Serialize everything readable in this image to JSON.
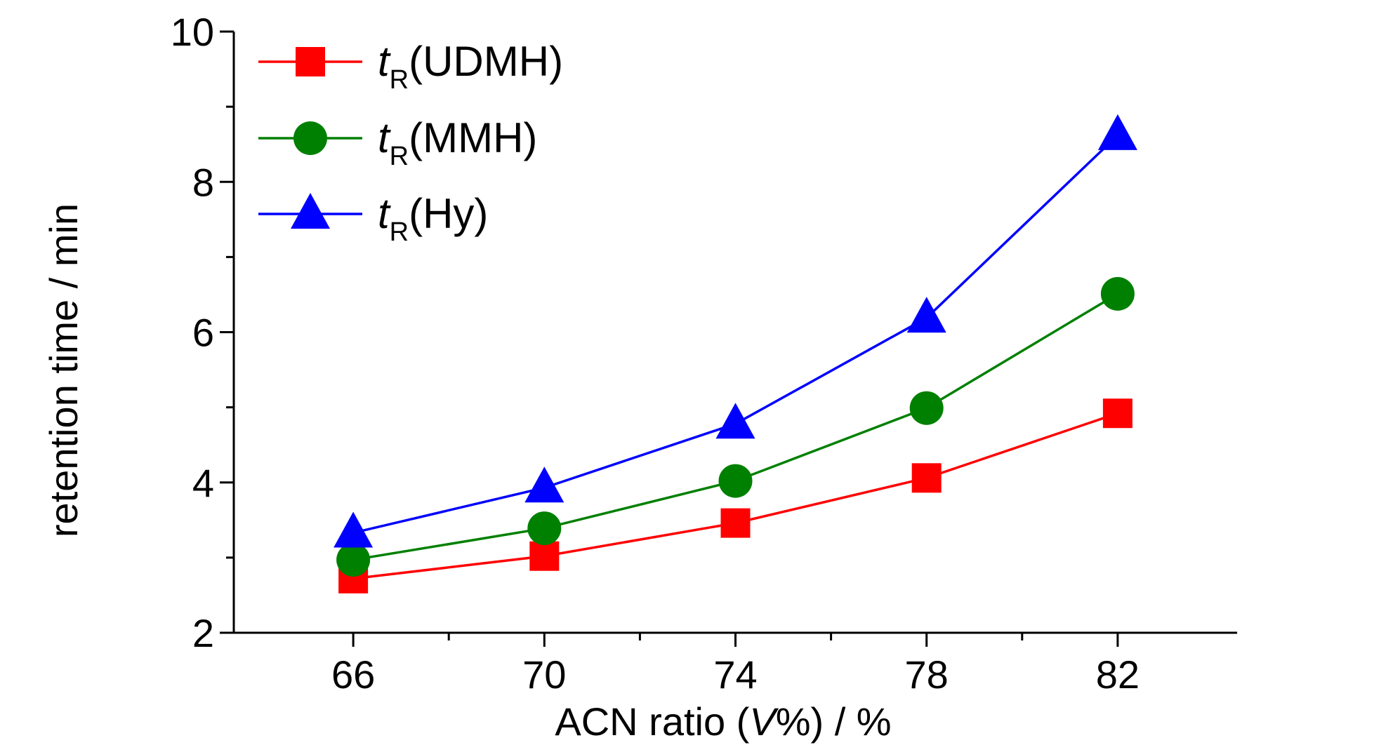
{
  "chart_data": {
    "type": "line",
    "xlabel": {
      "before": "ACN ratio (",
      "italic": "V",
      "after": "%) / %"
    },
    "ylabel": "retention time / min",
    "xlim": [
      63.5,
      84.5
    ],
    "ylim": [
      2,
      10
    ],
    "x_ticks": [
      "66",
      "70",
      "74",
      "78",
      "82"
    ],
    "y_ticks": [
      "2",
      "4",
      "6",
      "8",
      "10"
    ],
    "x": [
      66,
      70,
      74,
      78,
      82
    ],
    "legend_position": "top-left",
    "grid": false,
    "series": [
      {
        "name": "tR(UDMH)",
        "legend": {
          "italic": "t",
          "sub": "R",
          "rest": "(UDMH)"
        },
        "color": "#ff0000",
        "marker": "square",
        "values": [
          2.72,
          3.02,
          3.46,
          4.06,
          4.92
        ]
      },
      {
        "name": "tR(MMH)",
        "legend": {
          "italic": "t",
          "sub": "R",
          "rest": "(MMH)"
        },
        "color": "#008000",
        "marker": "circle",
        "values": [
          2.97,
          3.39,
          4.02,
          4.99,
          6.51
        ]
      },
      {
        "name": "tR(Hy)",
        "legend": {
          "italic": "t",
          "sub": "R",
          "rest": "(Hy)"
        },
        "color": "#0000ff",
        "marker": "triangle",
        "values": [
          3.33,
          3.93,
          4.78,
          6.19,
          8.62
        ]
      }
    ]
  }
}
